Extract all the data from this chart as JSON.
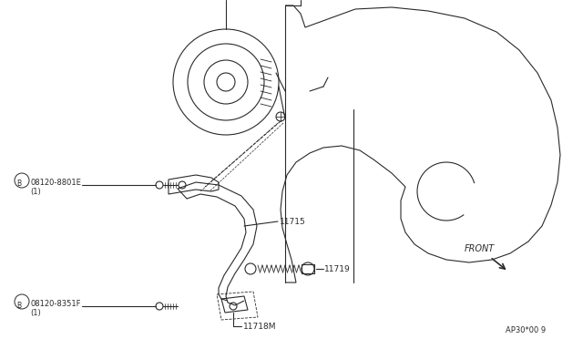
{
  "bg_color": "#ffffff",
  "line_color": "#2a2a2a",
  "text_color": "#2a2a2a",
  "ref_code": "AP30*00 9",
  "labels": {
    "B_upper_circle": "B",
    "B_upper_part": "08120-8801E",
    "B_upper_sub": "(1)",
    "B_lower_circle": "B",
    "B_lower_part": "08120-8351F",
    "B_lower_sub": "(1)",
    "part_11715": "11715",
    "part_11719": "11719",
    "part_11718M": "11718M",
    "front": "FRONT"
  }
}
